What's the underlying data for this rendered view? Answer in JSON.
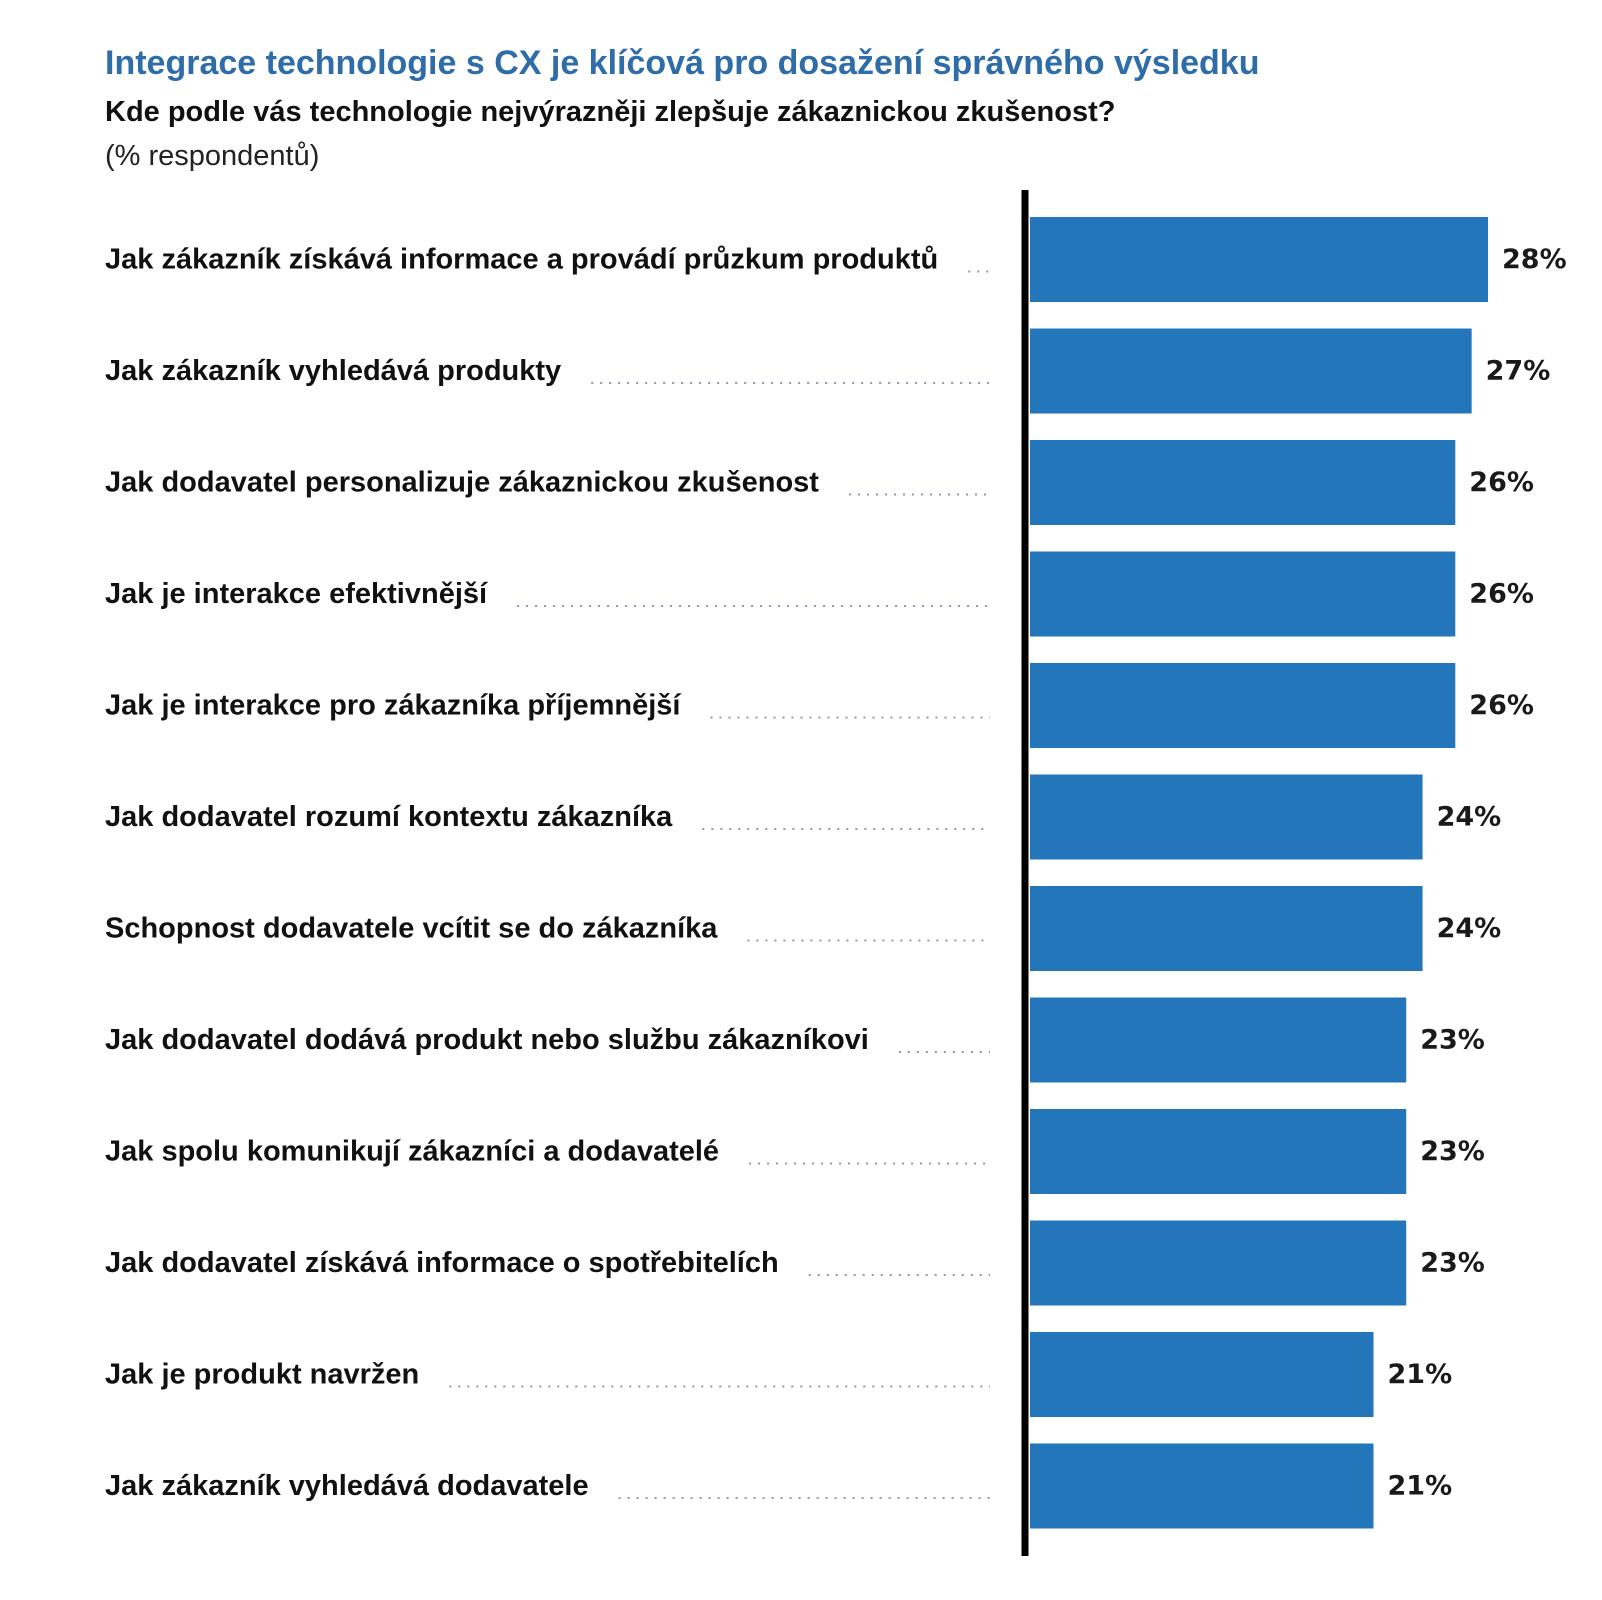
{
  "chart_data": {
    "type": "bar",
    "orientation": "horizontal",
    "title": "Integrace technologie s CX je klíčová pro dosažení správného výsledku",
    "subtitle": "Kde podle vás technologie nejvýrazněji zlepšuje zákaznickou zkušenost?",
    "unit_note": "(% respondentů)",
    "categories": [
      "Jak zákazník získává informace a provádí průzkum produktů",
      "Jak zákazník vyhledává produkty",
      "Jak dodavatel personalizuje zákaznickou zkušenost",
      "Jak je interakce efektivnější",
      "Jak je interakce pro zákazníka příjemnější",
      "Jak dodavatel rozumí kontextu zákazníka",
      "Schopnost dodavatele vcítit se do zákazníka",
      "Jak dodavatel dodává produkt nebo službu zákazníkovi",
      "Jak spolu komunikují zákazníci a dodavatelé",
      "Jak dodavatel získává informace o spotřebitelích",
      "Jak je produkt navržen",
      "Jak zákazník vyhledává dodavatele"
    ],
    "values": [
      28,
      27,
      26,
      26,
      26,
      24,
      24,
      23,
      23,
      23,
      21,
      21
    ],
    "value_labels": [
      "28%",
      "27%",
      "26%",
      "26%",
      "26%",
      "24%",
      "24%",
      "23%",
      "23%",
      "23%",
      "21%",
      "21%"
    ],
    "xlim": [
      0,
      28
    ],
    "grid": false,
    "legend": "none",
    "bar_color": "#2476bb",
    "axis_color": "#000000",
    "leader_color": "#8a9bb0"
  }
}
